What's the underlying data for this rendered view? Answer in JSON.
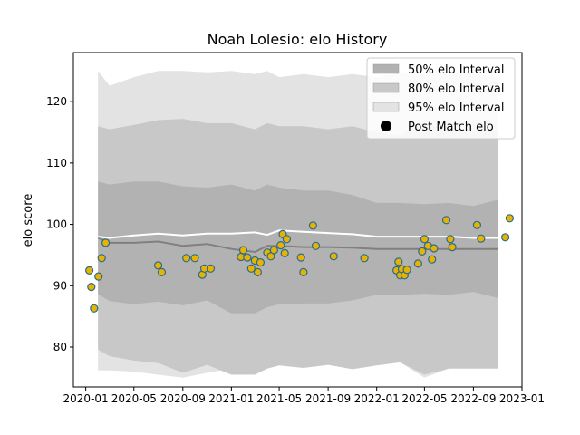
{
  "chart_data": {
    "type": "line",
    "title": "Noah Lolesio: elo History",
    "xlabel": "",
    "ylabel": "elo score",
    "x_range": [
      "2019-12-01",
      "2023-01-01"
    ],
    "ylim": [
      73.5,
      128
    ],
    "x_ticks": [
      "2020-01",
      "2020-05",
      "2020-09",
      "2021-01",
      "2021-05",
      "2021-09",
      "2022-01",
      "2022-05",
      "2022-09",
      "2023-01"
    ],
    "y_ticks": [
      80,
      90,
      100,
      110,
      120
    ],
    "grid": false,
    "legend_position": "top-right",
    "legend": [
      "50% elo Interval",
      "80% elo Interval",
      "95% elo Interval",
      "Post Match elo"
    ],
    "colors": {
      "band_50": "#b2b2b2",
      "band_80": "#c8c8c8",
      "band_95": "#e3e3e3",
      "median_line": "#808080",
      "mean_line": "#ffffff",
      "point_fill": "#e6b400",
      "point_edge": "#2a6a8f"
    },
    "interval_dates": [
      "2020-02-01",
      "2020-03-01",
      "2020-05-01",
      "2020-07-01",
      "2020-09-01",
      "2020-11-01",
      "2021-01-01",
      "2021-03-01",
      "2021-04-01",
      "2021-05-01",
      "2021-07-01",
      "2021-09-01",
      "2021-11-01",
      "2022-01-01",
      "2022-03-01",
      "2022-05-01",
      "2022-07-01",
      "2022-09-01",
      "2022-11-01"
    ],
    "interval_95": {
      "upper": [
        125,
        122.6,
        124,
        125,
        125,
        124.8,
        125,
        124.5,
        125,
        124,
        124.5,
        124,
        124.5,
        124,
        124.8,
        124.5,
        125,
        124.5,
        124
      ],
      "lower": [
        76.2,
        76.2,
        76,
        75.5,
        75,
        75.8,
        76.5,
        77,
        78,
        79,
        81,
        80,
        79.5,
        79.5,
        77.5,
        75,
        76.5,
        77.5,
        78.2
      ]
    },
    "interval_80": {
      "upper": [
        116,
        115.5,
        116.2,
        117,
        117.2,
        116.5,
        116.5,
        115.5,
        116.5,
        116,
        116,
        115.5,
        116,
        115,
        114.5,
        116.5,
        115.5,
        115.5,
        115.5
      ]
    },
    "interval_50": {
      "upper": [
        107,
        106.5,
        107,
        107,
        106.2,
        106,
        106.5,
        105.5,
        106.5,
        106,
        105.5,
        105.5,
        104.8,
        103.5,
        103.5,
        103.3,
        103.5,
        103,
        104
      ]
    },
    "median": [
      97.8,
      97,
      97,
      97.2,
      96.5,
      96.8,
      96,
      95.5,
      96.5,
      96.5,
      96.3,
      96.3,
      96.2,
      96,
      96,
      96,
      96,
      96,
      96
    ],
    "mean": [
      98,
      97.8,
      98.2,
      98.5,
      98.2,
      98.5,
      98.5,
      98.7,
      98.3,
      99,
      98.8,
      98.6,
      98.4,
      98,
      98,
      98,
      98,
      97.8,
      97.8
    ],
    "points": {
      "x": [
        "2020-01-10",
        "2020-01-15",
        "2020-01-22",
        "2020-02-02",
        "2020-02-10",
        "2020-02-20",
        "2020-07-01",
        "2020-07-10",
        "2020-09-10",
        "2020-10-01",
        "2020-10-20",
        "2020-10-25",
        "2020-11-10",
        "2021-01-25",
        "2021-01-31",
        "2021-02-10",
        "2021-02-20",
        "2021-03-01",
        "2021-03-08",
        "2021-03-15",
        "2021-04-01",
        "2021-04-10",
        "2021-04-18",
        "2021-05-05",
        "2021-05-10",
        "2021-05-15",
        "2021-05-20",
        "2021-06-25",
        "2021-07-01",
        "2021-07-25",
        "2021-08-01",
        "2021-09-15",
        "2021-12-01",
        "2022-02-20",
        "2022-02-25",
        "2022-03-01",
        "2022-03-05",
        "2022-03-12",
        "2022-03-18",
        "2022-04-15",
        "2022-04-25",
        "2022-05-01",
        "2022-05-10",
        "2022-05-20",
        "2022-05-25",
        "2022-06-25",
        "2022-07-05",
        "2022-07-10",
        "2022-09-10",
        "2022-09-20",
        "2022-11-20",
        "2022-12-01"
      ],
      "y": [
        92.5,
        89.8,
        86.3,
        91.5,
        94.5,
        97,
        93.3,
        92.2,
        94.5,
        94.5,
        91.8,
        92.8,
        92.8,
        94.7,
        95.8,
        94.6,
        92.8,
        94.1,
        92.2,
        93.8,
        95.4,
        94.8,
        95.8,
        96.6,
        98.4,
        95.3,
        97.6,
        94.6,
        92.2,
        99.8,
        96.5,
        94.8,
        94.5,
        92.5,
        93.9,
        91.7,
        92.7,
        91.7,
        92.6,
        93.6,
        95.6,
        97.6,
        96.5,
        94.3,
        96.1,
        100.7,
        97.6,
        96.3,
        99.9,
        97.7,
        97.9,
        101
      ]
    }
  }
}
